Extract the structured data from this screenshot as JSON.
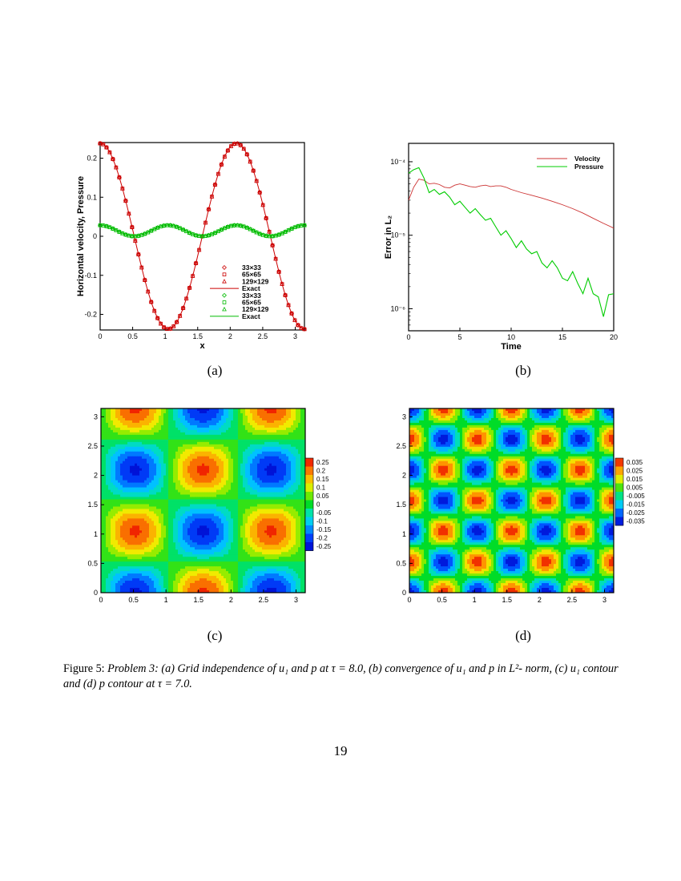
{
  "figure": {
    "caption_label": "Figure 5:",
    "caption_body": "Problem 3: (a) Grid independence of u₁ and p at τ = 8.0, (b) convergence of u₁ and p in L²- norm, (c) u₁ contour and (d) p contour at τ = 7.0.",
    "page_number": "19",
    "subfigure_labels": [
      "(a)",
      "(b)",
      "(c)",
      "(d)"
    ]
  },
  "chart_data": [
    {
      "type": "line",
      "xlabel": "x",
      "ylabel": "Horizontal velocity, Pressure",
      "xlim": [
        0,
        3.14159
      ],
      "ylim": [
        -0.24,
        0.24
      ],
      "xticks": [
        "0",
        "0.5",
        "1",
        "1.5",
        "2",
        "2.5",
        "3"
      ],
      "yticks": [
        "0.2",
        "0.1",
        "0",
        "-0.1",
        "-0.2"
      ],
      "legend_position": "bottom-center",
      "legend": [
        "33×33",
        "65×65",
        "129×129",
        "Exact",
        "33×33",
        "65×65",
        "129×129",
        "Exact"
      ],
      "series": [
        {
          "name": "Exact",
          "quantity": "velocity",
          "color": "#cc0000",
          "formula": "0.2378*cos(3x)",
          "amplitude": 0.2378
        },
        {
          "name": "Exact",
          "quantity": "pressure",
          "color": "#00bb00",
          "formula": "0.0141*(1+cos(6x))",
          "amplitude": 0.0141
        }
      ],
      "marker_sets": [
        "33×33",
        "65×65",
        "129×129"
      ]
    },
    {
      "type": "line",
      "xlabel": "Time",
      "ylabel": "Error in L₂",
      "xlim": [
        0,
        20
      ],
      "ylim_log10": [
        -6.3,
        -3.75
      ],
      "xticks": [
        "0",
        "5",
        "10",
        "15",
        "20"
      ],
      "yticks": [
        "10⁻⁴",
        "10⁻⁵",
        "10⁻⁶"
      ],
      "legend_position": "top-right",
      "series": [
        {
          "name": "Velocity",
          "color": "#cc3333",
          "x": [
            0,
            0.5,
            1,
            1.5,
            2,
            2.5,
            3,
            3.5,
            4,
            4.5,
            5,
            5.5,
            6,
            6.5,
            7,
            7.5,
            8,
            8.5,
            9,
            9.5,
            10,
            11,
            12,
            13,
            14,
            15,
            16,
            17,
            18,
            19,
            20
          ],
          "y": [
            3e-05,
            4.5e-05,
            5.8e-05,
            5.6e-05,
            5e-05,
            5.1e-05,
            4.9e-05,
            4.5e-05,
            4.4e-05,
            4.8e-05,
            5e-05,
            4.8e-05,
            4.6e-05,
            4.5e-05,
            4.7e-05,
            4.8e-05,
            4.6e-05,
            4.7e-05,
            4.7e-05,
            4.5e-05,
            4.2e-05,
            3.8e-05,
            3.5e-05,
            3.2e-05,
            2.9e-05,
            2.6e-05,
            2.3e-05,
            2e-05,
            1.7e-05,
            1.45e-05,
            1.25e-05
          ]
        },
        {
          "name": "Pressure",
          "color": "#00cc00",
          "x": [
            0,
            0.5,
            1,
            1.5,
            2,
            2.5,
            3,
            3.5,
            4,
            4.5,
            5,
            5.5,
            6,
            6.5,
            7,
            7.5,
            8,
            8.5,
            9,
            9.5,
            10,
            10.5,
            11,
            11.5,
            12,
            12.5,
            13,
            13.5,
            14,
            14.5,
            15,
            15.5,
            16,
            16.5,
            17,
            17.5,
            18,
            18.5,
            19,
            19.5,
            20
          ],
          "y": [
            7e-05,
            7.8e-05,
            8.3e-05,
            6e-05,
            3.8e-05,
            4.2e-05,
            3.6e-05,
            3.9e-05,
            3.3e-05,
            2.6e-05,
            2.9e-05,
            2.4e-05,
            2e-05,
            2.3e-05,
            1.9e-05,
            1.6e-05,
            1.7e-05,
            1.3e-05,
            1e-05,
            1.15e-05,
            9e-06,
            6.8e-06,
            8.4e-06,
            6.5e-06,
            5.6e-06,
            6e-06,
            4.2e-06,
            3.6e-06,
            4.5e-06,
            3.6e-06,
            2.6e-06,
            2.4e-06,
            3.2e-06,
            2.2e-06,
            1.6e-06,
            2.6e-06,
            1.6e-06,
            1.45e-06,
            7.8e-07,
            1.55e-06,
            1.6e-06
          ]
        }
      ]
    },
    {
      "type": "heatmap",
      "title": "",
      "field": "u1",
      "formula": "-0.2378*sin(3x)*cos(3y)",
      "xlim": [
        0,
        3.14159
      ],
      "ylim": [
        0,
        3.14159
      ],
      "xticks": [
        "0",
        "0.5",
        "1",
        "1.5",
        "2",
        "2.5",
        "3"
      ],
      "yticks": [
        "0",
        "0.5",
        "1",
        "1.5",
        "2",
        "2.5",
        "3"
      ],
      "colorbar_levels": [
        "0.25",
        "0.2",
        "0.15",
        "0.1",
        "0.05",
        "0",
        "-0.05",
        "-0.1",
        "-0.15",
        "-0.2",
        "-0.25"
      ],
      "colorbar_range": [
        -0.275,
        0.275
      ]
    },
    {
      "type": "heatmap",
      "title": "",
      "field": "p",
      "formula": "-0.0352*cos(6x)*cos(6y)",
      "xlim": [
        0,
        3.14159
      ],
      "ylim": [
        0,
        3.14159
      ],
      "xticks": [
        "0",
        "0.5",
        "1",
        "1.5",
        "2",
        "2.5",
        "3"
      ],
      "yticks": [
        "0",
        "0.5",
        "1",
        "1.5",
        "2",
        "2.5",
        "3"
      ],
      "colorbar_levels": [
        "0.035",
        "0.025",
        "0.015",
        "0.005",
        "-0.005",
        "-0.015",
        "-0.025",
        "-0.035"
      ],
      "colorbar_range": [
        -0.04,
        0.04
      ]
    }
  ]
}
